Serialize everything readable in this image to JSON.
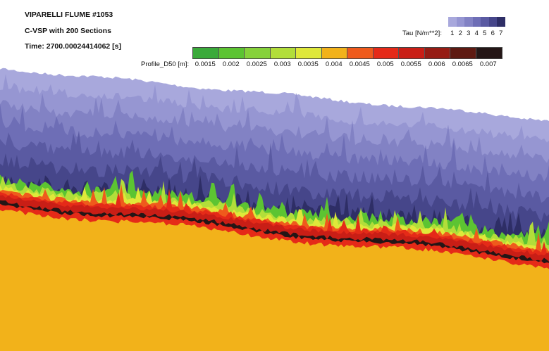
{
  "title": {
    "line1": "VIPARELLI FLUME #1053",
    "line2": "C-VSP with 200 Sections",
    "line3": "Time: 2700.00024414062 [s]"
  },
  "tau_legend": {
    "label": "Tau [N/m**2]:",
    "ticks": [
      "1",
      "2",
      "3",
      "4",
      "5",
      "6",
      "7"
    ],
    "colors": [
      "#a8a8dc",
      "#9696d2",
      "#8282c4",
      "#6e6eb6",
      "#5a5aa2",
      "#46468a",
      "#2e2e66"
    ]
  },
  "d50_legend": {
    "label": "Profile_D50 [m]:",
    "ticks": [
      "0.0015",
      "0.002",
      "0.0025",
      "0.003",
      "0.0035",
      "0.004",
      "0.0045",
      "0.005",
      "0.0055",
      "0.006",
      "0.0065",
      "0.007"
    ],
    "colors": [
      "#3aaa3a",
      "#5cc432",
      "#86d23a",
      "#b2de3a",
      "#dfe83a",
      "#f2b21a",
      "#ef5a1c",
      "#e52a18",
      "#c91e16",
      "#961c14",
      "#5e1a12",
      "#241616"
    ]
  },
  "chart_data": {
    "type": "area",
    "title": "VIPARELLI FLUME #1053",
    "subtitle": "C-VSP with 200 Sections; Time: 2700.00024414062 [s]",
    "x_label": "",
    "y_label": "",
    "series": [
      {
        "name": "Tau [N/m**2]",
        "values": [
          1,
          2,
          3,
          4,
          5,
          6,
          7
        ]
      },
      {
        "name": "Profile_D50 [m]",
        "values": [
          0.0015,
          0.002,
          0.0025,
          0.003,
          0.0035,
          0.004,
          0.0045,
          0.005,
          0.0055,
          0.006,
          0.0065,
          0.007
        ]
      }
    ],
    "legend": "top-right",
    "grid": false
  }
}
